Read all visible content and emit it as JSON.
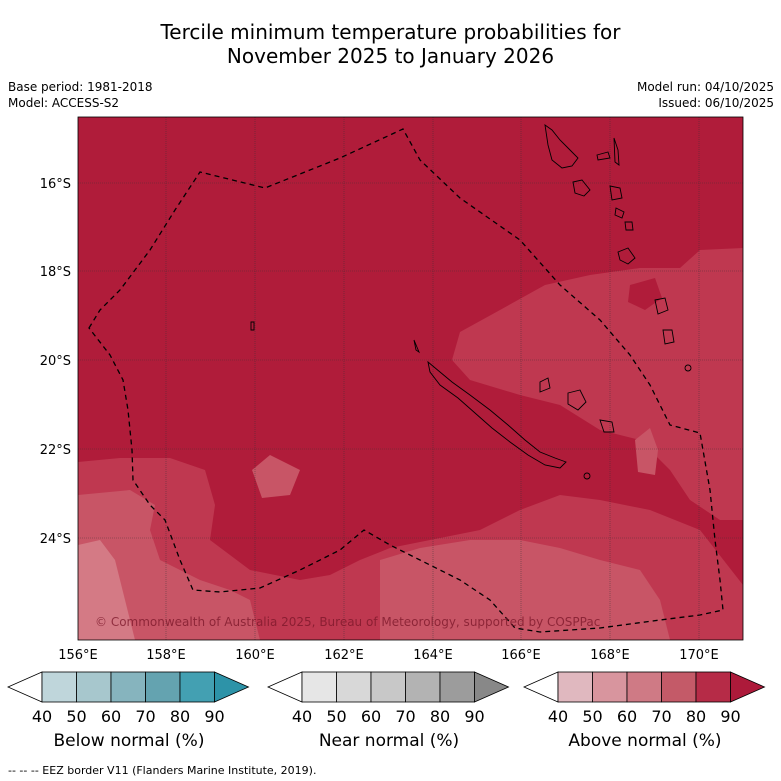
{
  "title_line1": "Tercile minimum temperature probabilities for",
  "title_line2": "November 2025 to January 2026",
  "base_period": "Base period: 1981-2018",
  "model": "Model: ACCESS-S2",
  "model_run": "Model run: 04/10/2025",
  "issued": "Issued: 06/10/2025",
  "copyright": "© Commonwealth of Australia 2025, Bureau of Meteorology, supported by COSPPac",
  "footnote": "--  --  -- EEZ border V11 (Flanders Marine Institute, 2019).",
  "map": {
    "lon_ticks": [
      "156°E",
      "158°E",
      "160°E",
      "162°E",
      "164°E",
      "166°E",
      "168°E",
      "170°E"
    ],
    "lat_ticks": [
      "16°S",
      "18°S",
      "20°S",
      "22°S",
      "24°S"
    ]
  },
  "colorbars": [
    {
      "label": "Below normal (%)",
      "ticks": [
        "40",
        "50",
        "60",
        "70",
        "80",
        "90"
      ],
      "colors": [
        "#ffffff",
        "#bfd6db",
        "#a7c7cd",
        "#86b4be",
        "#64a3b0",
        "#43a0b2",
        "#2d93a8"
      ]
    },
    {
      "label": "Near normal (%)",
      "ticks": [
        "40",
        "50",
        "60",
        "70",
        "80",
        "90"
      ],
      "colors": [
        "#ffffff",
        "#e6e6e6",
        "#d8d8d8",
        "#c8c8c8",
        "#b3b3b3",
        "#9c9c9c",
        "#888888"
      ]
    },
    {
      "label": "Above normal (%)",
      "ticks": [
        "40",
        "50",
        "60",
        "70",
        "80",
        "90"
      ],
      "colors": [
        "#ffffff",
        "#e0b8bf",
        "#d8959e",
        "#cf7a85",
        "#c45a68",
        "#b62b47",
        "#ad1a3a"
      ]
    }
  ]
}
